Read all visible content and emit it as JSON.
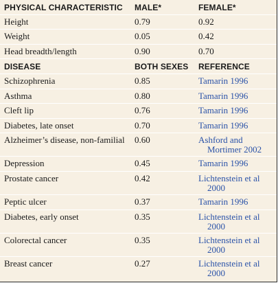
{
  "physical_header": {
    "col1": "PHYSICAL CHARACTERISTIC",
    "col2": "MALE*",
    "col3": "FEMALE*"
  },
  "physical_rows": [
    {
      "label": "Height",
      "male": "0.79",
      "female": "0.92"
    },
    {
      "label": "Weight",
      "male": "0.05",
      "female": "0.42"
    },
    {
      "label": "Head breadth/length",
      "male": "0.90",
      "female": "0.70"
    }
  ],
  "disease_header": {
    "col1": "DISEASE",
    "col2": "BOTH SEXES",
    "col3": "REFERENCE"
  },
  "disease_rows": [
    {
      "label": "Schizophrenia",
      "value": "0.85",
      "ref1": "Tamarin 1996",
      "ref2": ""
    },
    {
      "label": "Asthma",
      "value": "0.80",
      "ref1": "Tamarin 1996",
      "ref2": ""
    },
    {
      "label": "Cleft lip",
      "value": "0.76",
      "ref1": "Tamarin 1996",
      "ref2": ""
    },
    {
      "label": "Diabetes, late onset",
      "value": "0.70",
      "ref1": "Tamarin 1996",
      "ref2": ""
    },
    {
      "label": "Alzheimer’s disease, non-familial",
      "value": "0.60",
      "ref1": "Ashford and",
      "ref2": "Mortimer 2002"
    },
    {
      "label": "Depression",
      "value": "0.45",
      "ref1": "Tamarin 1996",
      "ref2": ""
    },
    {
      "label": "Prostate cancer",
      "value": "0.42",
      "ref1": "Lichtenstein et al",
      "ref2": "2000"
    },
    {
      "label": "Peptic ulcer",
      "value": "0.37",
      "ref1": "Tamarin 1996",
      "ref2": ""
    },
    {
      "label": "Diabetes, early onset",
      "value": "0.35",
      "ref1": "Lichtenstein et al",
      "ref2": "2000"
    },
    {
      "label": "Colorectal cancer",
      "value": "0.35",
      "ref1": "Lichtenstein et al",
      "ref2": "2000"
    },
    {
      "label": "Breast cancer",
      "value": "0.27",
      "ref1": "Lichtenstein et al",
      "ref2": "2000"
    }
  ],
  "colors": {
    "background": "#f7f0e3",
    "link": "#2a52a8",
    "text": "#1a1a1a"
  }
}
